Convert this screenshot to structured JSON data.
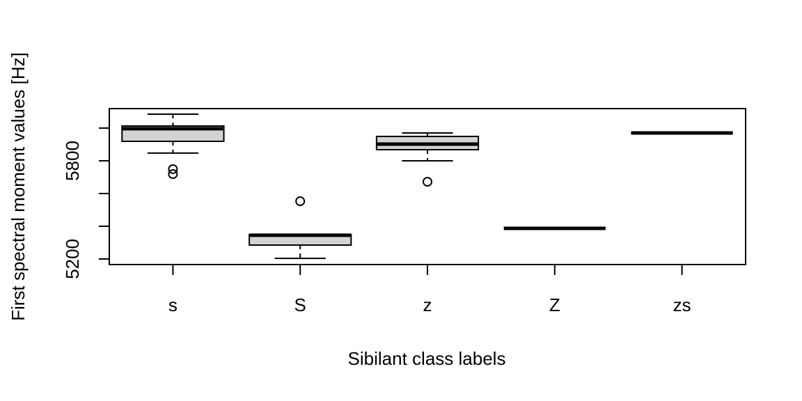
{
  "chart_data": {
    "type": "box",
    "x_label": "Sibilant class labels",
    "y_label": "First spectral moment values [Hz]",
    "categories": [
      "s",
      "S",
      "z",
      "Z",
      "zs"
    ],
    "boxes": [
      {
        "min": 5847,
        "q1": 5919,
        "median": 5996,
        "q3": 6013,
        "max": 6085,
        "outliers": [
          5749,
          5719
        ]
      },
      {
        "min": 5204,
        "q1": 5285,
        "median": 5345,
        "q3": 5349,
        "max": 5349,
        "outliers": [
          5553
        ]
      },
      {
        "min": 5800,
        "q1": 5868,
        "median": 5902,
        "q3": 5949,
        "max": 5970,
        "outliers": [
          5672
        ]
      },
      {
        "min": 5387,
        "q1": 5387,
        "median": 5387,
        "q3": 5387,
        "max": 5387,
        "outliers": []
      },
      {
        "min": 5970,
        "q1": 5970,
        "median": 5970,
        "q3": 5970,
        "max": 5970,
        "outliers": []
      }
    ],
    "color": "#d3d3d3",
    "ylim": [
      5166,
      6119
    ],
    "yticks": [
      5200,
      5800
    ],
    "unlabeled_yticks": [
      5400,
      5600,
      6000
    ]
  }
}
